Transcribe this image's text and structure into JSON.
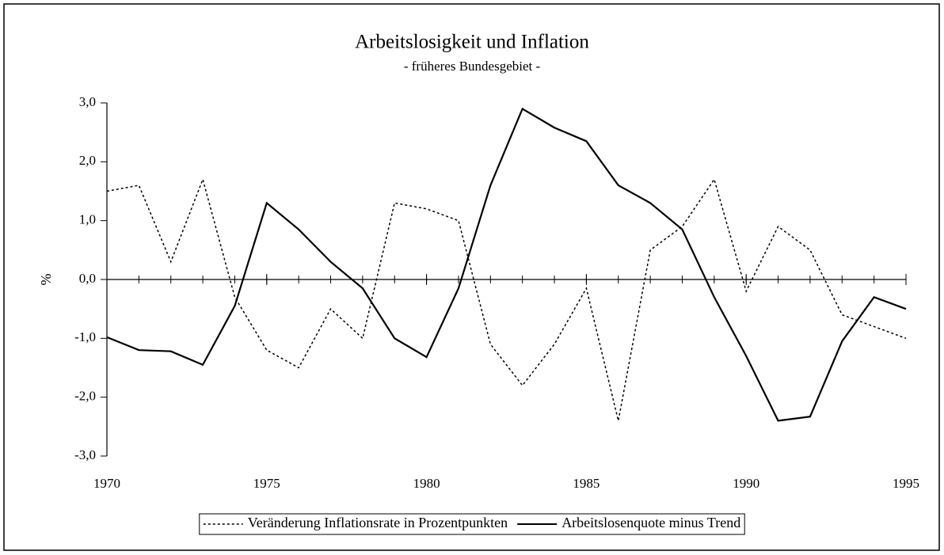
{
  "chart_data": {
    "type": "line",
    "title": "Arbeitslosigkeit und Inflation",
    "subtitle": "- früheres Bundesgebiet -",
    "y_label": "%",
    "x": [
      1970,
      1971,
      1972,
      1973,
      1974,
      1975,
      1976,
      1977,
      1978,
      1979,
      1980,
      1981,
      1982,
      1983,
      1984,
      1985,
      1986,
      1987,
      1988,
      1989,
      1990,
      1991,
      1992,
      1993,
      1994,
      1995
    ],
    "series": [
      {
        "name": "Veränderung Inflationsrate in Prozentpunkten",
        "color": "#000000",
        "line_style": "dotted",
        "values": [
          1.5,
          1.6,
          0.3,
          1.7,
          -0.3,
          -1.2,
          -1.5,
          -0.5,
          -1.0,
          1.3,
          1.2,
          1.0,
          -1.1,
          -1.8,
          -1.1,
          -0.15,
          -2.4,
          0.5,
          0.9,
          1.7,
          -0.2,
          0.9,
          0.5,
          -0.6,
          -0.8,
          -1.0
        ]
      },
      {
        "name": "Arbeitslosenquote minus Trend",
        "color": "#000000",
        "line_style": "solid",
        "values": [
          -0.98,
          -1.2,
          -1.22,
          -1.45,
          -0.45,
          1.3,
          0.85,
          0.3,
          -0.15,
          -1.0,
          -1.32,
          -0.15,
          1.6,
          2.9,
          2.58,
          2.35,
          1.6,
          1.3,
          0.85,
          -0.3,
          -1.3,
          -2.4,
          -2.33,
          -1.05,
          -0.3,
          -0.5
        ]
      }
    ],
    "xlim": [
      1970,
      1995
    ],
    "xticks": [
      1970,
      1975,
      1980,
      1985,
      1990,
      1995
    ],
    "ylim": [
      -3,
      3
    ],
    "yticks": [
      {
        "value": -3,
        "label": "-3,0"
      },
      {
        "value": -2,
        "label": "-2,0"
      },
      {
        "value": -1,
        "label": "-1,0"
      },
      {
        "value": 0,
        "label": "0,0"
      },
      {
        "value": 1,
        "label": "1,0"
      },
      {
        "value": 2,
        "label": "2,0"
      },
      {
        "value": 3,
        "label": "3,0"
      }
    ],
    "legend": "bottom"
  }
}
